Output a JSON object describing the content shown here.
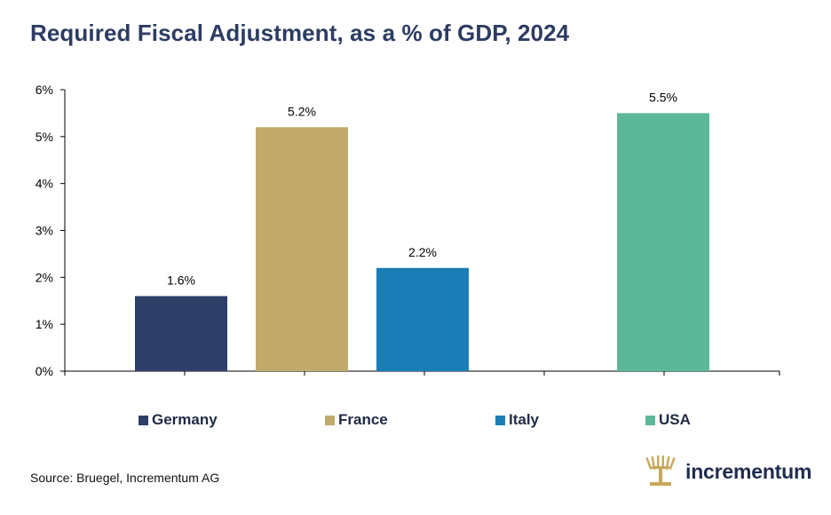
{
  "title": "Required Fiscal Adjustment, as a % of GDP, 2024",
  "source": "Source: Bruegel, Incrementum AG",
  "logo_text": "incrementum",
  "colors": {
    "Germany": "#2e4068",
    "France": "#c2aa6c",
    "Italy": "#1a7db5",
    "USA": "#5cb898",
    "title": "#2c3c63",
    "logo_mark": "#c9a85c"
  },
  "chart_data": {
    "type": "bar",
    "title": "Required Fiscal Adjustment, as a % of GDP, 2024",
    "categories": [
      "Germany",
      "France",
      "Italy",
      "USA"
    ],
    "values": [
      1.6,
      5.2,
      2.2,
      5.5
    ],
    "data_labels": [
      "1.6%",
      "5.2%",
      "2.2%",
      "5.5%"
    ],
    "ylim": [
      0,
      6
    ],
    "yticks": [
      "0%",
      "1%",
      "2%",
      "3%",
      "4%",
      "5%",
      "6%"
    ],
    "xlabel": "",
    "ylabel": "",
    "grid": false,
    "legend_position": "bottom",
    "legend": [
      "Germany",
      "France",
      "Italy",
      "USA"
    ]
  }
}
